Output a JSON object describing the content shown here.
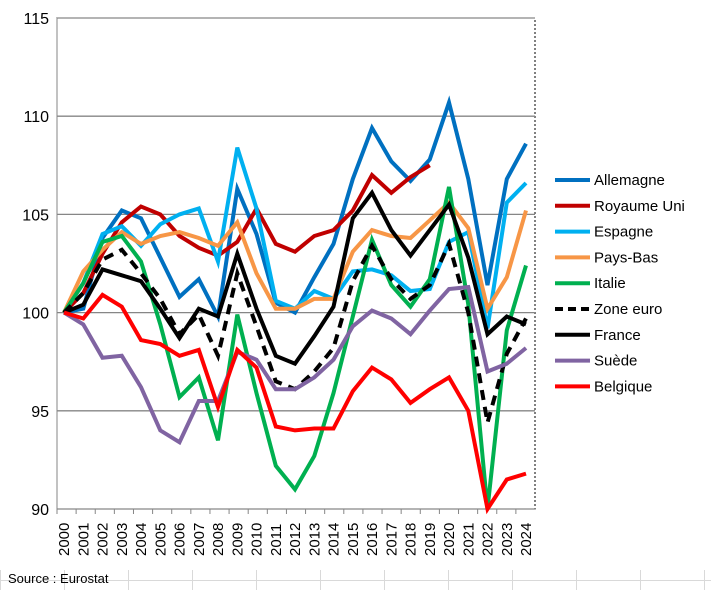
{
  "chart_data": {
    "type": "line",
    "title": "",
    "xlabel": "",
    "ylabel": "",
    "ylim": [
      90,
      115
    ],
    "yticks": [
      90,
      95,
      100,
      105,
      110,
      115
    ],
    "grid": true,
    "legend_position": "right",
    "x": [
      "2000",
      "2001",
      "2002",
      "2003",
      "2004",
      "2005",
      "2006",
      "2007",
      "2008",
      "2009",
      "2010",
      "2011",
      "2012",
      "2013",
      "2014",
      "2015",
      "2016",
      "2017",
      "2018",
      "2019",
      "2020",
      "2021",
      "2022",
      "2023",
      "2024"
    ],
    "series": [
      {
        "name": "Allemagne",
        "color": "#0070C0",
        "dash": false,
        "values": [
          100,
          100.2,
          103.8,
          105.2,
          104.8,
          102.8,
          100.8,
          101.7,
          99.8,
          106.3,
          104.0,
          100.5,
          100.0,
          101.8,
          103.5,
          106.8,
          109.4,
          107.7,
          106.7,
          107.8,
          110.7,
          106.8,
          101.4,
          106.8,
          108.6
        ]
      },
      {
        "name": "Royaume Uni",
        "color": "#C00000",
        "dash": false,
        "values": [
          100,
          101.0,
          103.0,
          104.6,
          105.4,
          105.0,
          103.9,
          103.3,
          102.9,
          103.6,
          105.3,
          103.5,
          103.1,
          103.9,
          104.2,
          105.2,
          107.0,
          106.1,
          106.9,
          107.5,
          null,
          null,
          null,
          null,
          null
        ]
      },
      {
        "name": "Espagne",
        "color": "#00B0F0",
        "dash": false,
        "values": [
          100,
          101.5,
          104.0,
          104.4,
          103.4,
          104.5,
          105.0,
          105.3,
          102.6,
          108.4,
          105.3,
          100.6,
          100.2,
          101.1,
          100.7,
          102.1,
          102.2,
          101.9,
          101.1,
          101.2,
          103.6,
          104.1,
          99.2,
          105.6,
          106.6
        ]
      },
      {
        "name": "Pays-Bas",
        "color": "#F79646",
        "dash": false,
        "values": [
          100,
          102.1,
          103.2,
          104.1,
          103.5,
          103.9,
          104.1,
          103.8,
          103.4,
          104.6,
          102.0,
          100.2,
          100.2,
          100.7,
          100.7,
          103.1,
          104.2,
          103.9,
          103.8,
          104.7,
          105.6,
          104.3,
          100.2,
          101.8,
          105.2
        ]
      },
      {
        "name": "Italie",
        "color": "#00B050",
        "dash": false,
        "values": [
          100,
          101.5,
          103.6,
          103.9,
          102.6,
          99.4,
          95.7,
          96.7,
          93.5,
          99.9,
          95.9,
          92.2,
          91.0,
          92.7,
          95.9,
          99.8,
          103.7,
          101.4,
          100.3,
          101.7,
          106.4,
          100.4,
          90.0,
          99.1,
          102.4
        ]
      },
      {
        "name": "Zone euro",
        "color": "#000000",
        "dash": true,
        "values": [
          100,
          101.0,
          102.7,
          103.2,
          102.0,
          100.7,
          98.9,
          99.9,
          97.8,
          102.0,
          99.3,
          96.5,
          96.1,
          97.0,
          98.2,
          101.6,
          103.4,
          101.7,
          100.7,
          101.4,
          103.5,
          100.0,
          94.4,
          97.9,
          99.7
        ]
      },
      {
        "name": "France",
        "color": "#000000",
        "dash": false,
        "values": [
          100,
          100.4,
          102.2,
          101.9,
          101.6,
          100.2,
          98.7,
          100.2,
          99.8,
          103.0,
          100.2,
          97.8,
          97.4,
          98.8,
          100.3,
          104.8,
          106.1,
          104.2,
          102.9,
          104.2,
          105.5,
          102.8,
          98.9,
          99.8,
          99.4
        ]
      },
      {
        "name": "Suède",
        "color": "#8064A2",
        "dash": false,
        "values": [
          100,
          99.4,
          97.7,
          97.8,
          96.2,
          94.0,
          93.4,
          95.5,
          95.5,
          98.0,
          97.6,
          96.1,
          96.1,
          96.7,
          97.6,
          99.3,
          100.1,
          99.7,
          98.9,
          100.1,
          101.2,
          101.3,
          97.0,
          97.4,
          98.2
        ]
      },
      {
        "name": "Belgique",
        "color": "#FF0000",
        "dash": false,
        "values": [
          100,
          99.7,
          100.9,
          100.3,
          98.6,
          98.4,
          97.8,
          98.1,
          95.2,
          98.1,
          97.2,
          94.2,
          94.0,
          94.1,
          94.1,
          96.0,
          97.2,
          96.6,
          95.4,
          96.1,
          96.7,
          95.0,
          90.0,
          91.5,
          91.8
        ]
      }
    ]
  },
  "source": "Source : Eurostat"
}
